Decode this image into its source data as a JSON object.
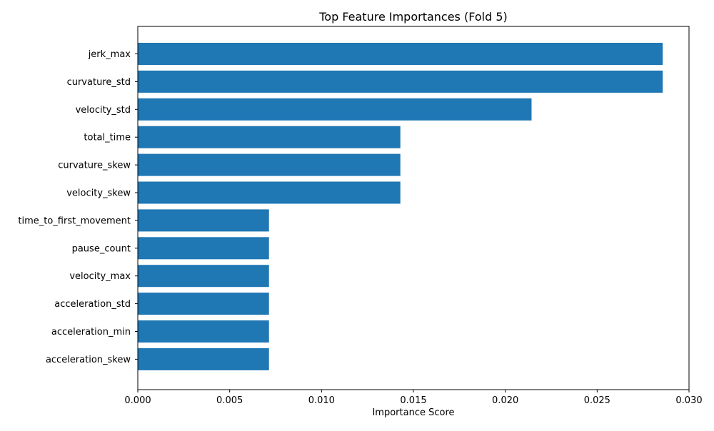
{
  "chart_data": {
    "type": "bar",
    "orientation": "horizontal",
    "title": "Top Feature Importances (Fold 5)",
    "xlabel": "Importance Score",
    "ylabel": "",
    "xlim": [
      0,
      0.03
    ],
    "xticks": [
      0.0,
      0.005,
      0.01,
      0.015,
      0.02,
      0.025,
      0.03
    ],
    "xtick_labels": [
      "0.000",
      "0.005",
      "0.010",
      "0.015",
      "0.020",
      "0.025",
      "0.030"
    ],
    "grid": false,
    "legend": "none",
    "bar_color": "#1f77b4",
    "categories": [
      "jerk_max",
      "curvature_std",
      "velocity_std",
      "total_time",
      "curvature_skew",
      "velocity_skew",
      "time_to_first_movement",
      "pause_count",
      "velocity_max",
      "acceleration_std",
      "acceleration_min",
      "acceleration_skew"
    ],
    "values": [
      0.02857,
      0.02857,
      0.02143,
      0.01429,
      0.01429,
      0.01429,
      0.00714,
      0.00714,
      0.00714,
      0.00714,
      0.00714,
      0.00714
    ]
  }
}
